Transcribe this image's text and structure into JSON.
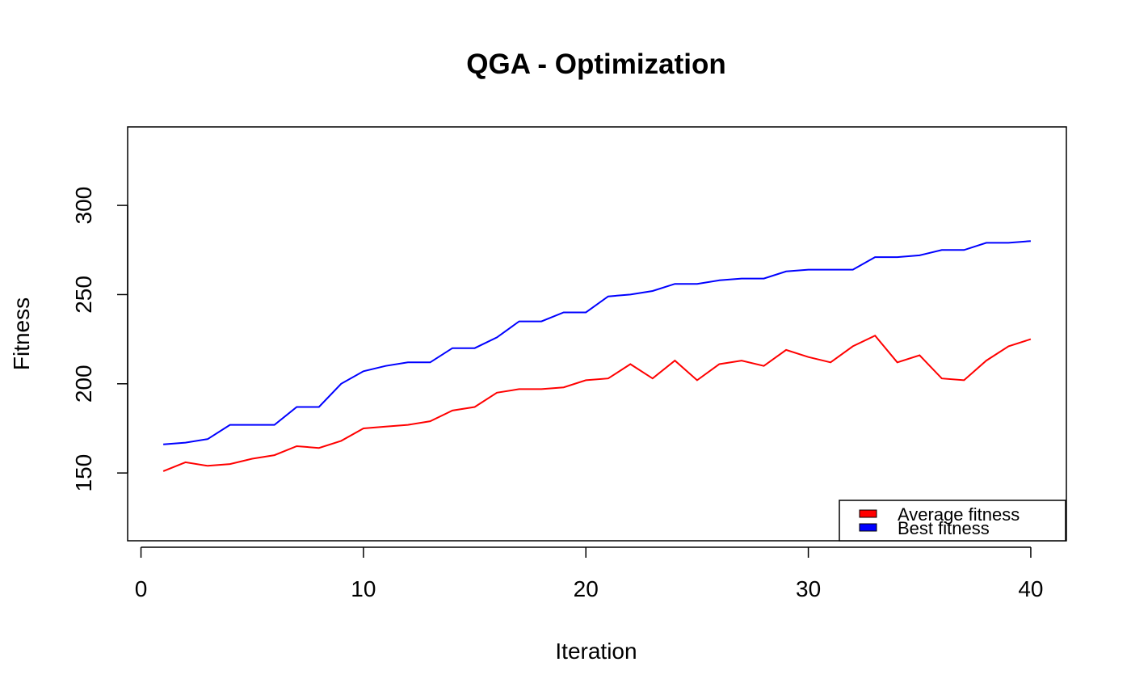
{
  "chart_data": {
    "type": "line",
    "title": "QGA - Optimization",
    "xlabel": "Iteration",
    "ylabel": "Fitness",
    "xlim": [
      -0.6,
      41.6
    ],
    "ylim": [
      112,
      344
    ],
    "x_ticks": [
      0,
      10,
      20,
      30,
      40
    ],
    "y_ticks": [
      150,
      200,
      250,
      300
    ],
    "grid": false,
    "legend_position": "bottom-right",
    "x": [
      1,
      2,
      3,
      4,
      5,
      6,
      7,
      8,
      9,
      10,
      11,
      12,
      13,
      14,
      15,
      16,
      17,
      18,
      19,
      20,
      21,
      22,
      23,
      24,
      25,
      26,
      27,
      28,
      29,
      30,
      31,
      32,
      33,
      34,
      35,
      36,
      37,
      38,
      39,
      40
    ],
    "series": [
      {
        "name": "Average fitness",
        "color": "#ff0000",
        "values": [
          151,
          156,
          154,
          155,
          158,
          160,
          165,
          164,
          168,
          175,
          176,
          177,
          179,
          185,
          187,
          195,
          197,
          197,
          198,
          202,
          203,
          211,
          203,
          213,
          202,
          211,
          213,
          210,
          219,
          215,
          212,
          221,
          227,
          212,
          216,
          203,
          202,
          213,
          221,
          225
        ]
      },
      {
        "name": "Best fitness",
        "color": "#0000ff",
        "values": [
          166,
          167,
          169,
          177,
          177,
          177,
          187,
          187,
          200,
          207,
          210,
          212,
          212,
          220,
          220,
          226,
          235,
          235,
          240,
          240,
          249,
          250,
          252,
          256,
          256,
          258,
          259,
          259,
          263,
          264,
          264,
          264,
          271,
          271,
          272,
          275,
          275,
          279,
          279,
          280
        ]
      }
    ]
  }
}
